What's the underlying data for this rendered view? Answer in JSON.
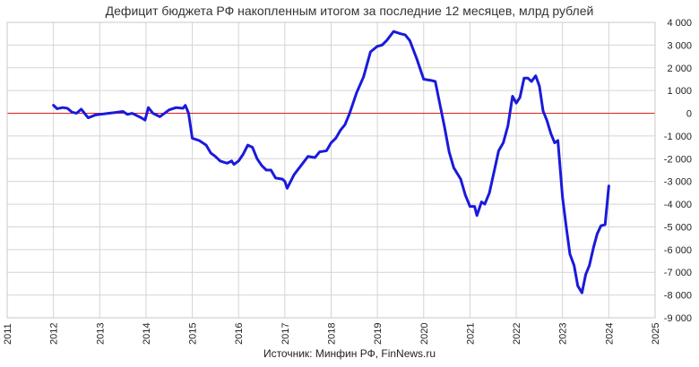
{
  "chart_data": {
    "type": "line",
    "title": "Дефицит бюджета РФ накопленным итогом за последние 12 месяцев, млрд рублей",
    "source": "Источник: Минфин РФ, FinNews.ru",
    "xlim": [
      2011,
      2025
    ],
    "ylim": [
      -9000,
      4000
    ],
    "x_ticks": [
      2011,
      2012,
      2013,
      2014,
      2015,
      2016,
      2017,
      2018,
      2019,
      2020,
      2021,
      2022,
      2023,
      2024,
      2025
    ],
    "y_ticks": [
      {
        "v": 4000,
        "label": "4 000"
      },
      {
        "v": 3000,
        "label": "3 000"
      },
      {
        "v": 2000,
        "label": "2 000"
      },
      {
        "v": 1000,
        "label": "1 000"
      },
      {
        "v": 0,
        "label": "0"
      },
      {
        "v": -1000,
        "label": "-1 000"
      },
      {
        "v": -2000,
        "label": "-2 000"
      },
      {
        "v": -3000,
        "label": "-3 000"
      },
      {
        "v": -4000,
        "label": "-4 000"
      },
      {
        "v": -5000,
        "label": "-5 000"
      },
      {
        "v": -6000,
        "label": "-6 000"
      },
      {
        "v": -7000,
        "label": "-7 000"
      },
      {
        "v": -8000,
        "label": "-8 000"
      },
      {
        "v": -9000,
        "label": "-9 000"
      }
    ],
    "grid": true,
    "line_color": "#1a1adb",
    "zero_line_color": "#d62020",
    "series": [
      {
        "points": [
          [
            2012.0,
            350
          ],
          [
            2012.08,
            200
          ],
          [
            2012.2,
            250
          ],
          [
            2012.3,
            220
          ],
          [
            2012.4,
            50
          ],
          [
            2012.5,
            0
          ],
          [
            2012.6,
            180
          ],
          [
            2012.75,
            -200
          ],
          [
            2012.9,
            -80
          ],
          [
            2013.0,
            -50
          ],
          [
            2013.2,
            0
          ],
          [
            2013.4,
            50
          ],
          [
            2013.5,
            80
          ],
          [
            2013.6,
            -50
          ],
          [
            2013.7,
            0
          ],
          [
            2013.8,
            -100
          ],
          [
            2013.9,
            -200
          ],
          [
            2013.98,
            -300
          ],
          [
            2014.05,
            250
          ],
          [
            2014.15,
            0
          ],
          [
            2014.3,
            -150
          ],
          [
            2014.4,
            0
          ],
          [
            2014.5,
            150
          ],
          [
            2014.65,
            250
          ],
          [
            2014.8,
            220
          ],
          [
            2014.85,
            350
          ],
          [
            2014.92,
            0
          ],
          [
            2015.0,
            -1100
          ],
          [
            2015.15,
            -1200
          ],
          [
            2015.3,
            -1400
          ],
          [
            2015.4,
            -1750
          ],
          [
            2015.5,
            -1900
          ],
          [
            2015.6,
            -2100
          ],
          [
            2015.75,
            -2200
          ],
          [
            2015.85,
            -2100
          ],
          [
            2015.9,
            -2250
          ],
          [
            2016.0,
            -2100
          ],
          [
            2016.1,
            -1800
          ],
          [
            2016.2,
            -1400
          ],
          [
            2016.3,
            -1500
          ],
          [
            2016.4,
            -2000
          ],
          [
            2016.5,
            -2300
          ],
          [
            2016.6,
            -2500
          ],
          [
            2016.7,
            -2500
          ],
          [
            2016.8,
            -2850
          ],
          [
            2016.95,
            -2900
          ],
          [
            2017.0,
            -3000
          ],
          [
            2017.05,
            -3300
          ],
          [
            2017.2,
            -2700
          ],
          [
            2017.35,
            -2300
          ],
          [
            2017.5,
            -1900
          ],
          [
            2017.65,
            -1950
          ],
          [
            2017.75,
            -1700
          ],
          [
            2017.9,
            -1650
          ],
          [
            2018.0,
            -1300
          ],
          [
            2018.1,
            -1100
          ],
          [
            2018.2,
            -750
          ],
          [
            2018.3,
            -500
          ],
          [
            2018.4,
            0
          ],
          [
            2018.55,
            900
          ],
          [
            2018.7,
            1600
          ],
          [
            2018.85,
            2700
          ],
          [
            2019.0,
            2950
          ],
          [
            2019.1,
            3000
          ],
          [
            2019.2,
            3200
          ],
          [
            2019.35,
            3600
          ],
          [
            2019.5,
            3500
          ],
          [
            2019.6,
            3450
          ],
          [
            2019.7,
            3200
          ],
          [
            2019.85,
            2400
          ],
          [
            2019.95,
            1800
          ],
          [
            2020.0,
            1500
          ],
          [
            2020.15,
            1450
          ],
          [
            2020.25,
            1400
          ],
          [
            2020.35,
            400
          ],
          [
            2020.45,
            -600
          ],
          [
            2020.55,
            -1700
          ],
          [
            2020.65,
            -2400
          ],
          [
            2020.8,
            -2900
          ],
          [
            2020.9,
            -3600
          ],
          [
            2021.0,
            -4100
          ],
          [
            2021.1,
            -4100
          ],
          [
            2021.15,
            -4500
          ],
          [
            2021.25,
            -3900
          ],
          [
            2021.32,
            -4000
          ],
          [
            2021.42,
            -3500
          ],
          [
            2021.55,
            -2300
          ],
          [
            2021.62,
            -1650
          ],
          [
            2021.72,
            -1300
          ],
          [
            2021.82,
            -550
          ],
          [
            2021.92,
            750
          ],
          [
            2022.0,
            450
          ],
          [
            2022.08,
            700
          ],
          [
            2022.17,
            1550
          ],
          [
            2022.25,
            1550
          ],
          [
            2022.33,
            1400
          ],
          [
            2022.42,
            1650
          ],
          [
            2022.5,
            1200
          ],
          [
            2022.58,
            100
          ],
          [
            2022.66,
            -300
          ],
          [
            2022.75,
            -900
          ],
          [
            2022.83,
            -1300
          ],
          [
            2022.9,
            -1200
          ],
          [
            2023.0,
            -3700
          ],
          [
            2023.08,
            -5000
          ],
          [
            2023.16,
            -6200
          ],
          [
            2023.25,
            -6700
          ],
          [
            2023.33,
            -7600
          ],
          [
            2023.42,
            -7900
          ],
          [
            2023.5,
            -7100
          ],
          [
            2023.58,
            -6700
          ],
          [
            2023.67,
            -5900
          ],
          [
            2023.75,
            -5300
          ],
          [
            2023.83,
            -4950
          ],
          [
            2023.92,
            -4900
          ],
          [
            2024.0,
            -3200
          ]
        ]
      }
    ]
  }
}
